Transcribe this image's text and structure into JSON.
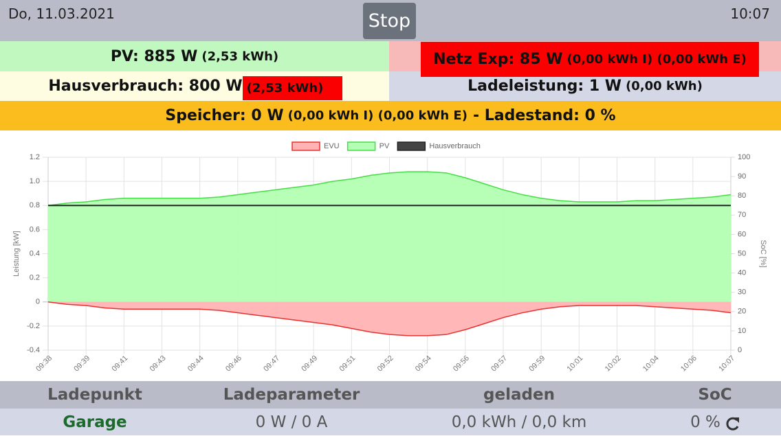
{
  "header": {
    "date": "Do, 11.03.2021",
    "button": "Stop",
    "time": "10:07"
  },
  "summary": {
    "pv": {
      "label": "PV: 885 W",
      "detail": "(2,53 kWh)"
    },
    "grid": {
      "label": "Netz Exp: 85 W",
      "detail": "(0,00 kWh I) (0,00 kWh E)"
    },
    "house": {
      "label": "Hausverbrauch: 800 W",
      "detail": "(2,53 kWh)"
    },
    "charging": {
      "label": "Ladeleistung: 1 W",
      "detail": "(0,00 kWh)"
    },
    "storage": {
      "label": "Speicher: 0 W",
      "detail": "(0,00 kWh I) (0,00 kWh E)",
      "soc": "- Ladestand: 0 %"
    }
  },
  "chart_data": {
    "type": "area",
    "y_label": "Leistung [kW]",
    "y2_label": "SoC [%]",
    "categories": [
      "09:38",
      null,
      "09:39",
      null,
      "09:41",
      null,
      "09:43",
      null,
      "09:44",
      null,
      "09:46",
      null,
      "09:47",
      null,
      "09:49",
      null,
      "09:51",
      null,
      "09:52",
      null,
      "09:54",
      null,
      "09:56",
      null,
      "09:57",
      null,
      "09:59",
      null,
      "10:01",
      null,
      "10:02",
      null,
      "10:04",
      null,
      "10:06",
      null,
      "10:07"
    ],
    "series": [
      {
        "name": "EVU",
        "color": "#e83030",
        "fill": "#ffb3b3",
        "values": [
          0,
          -0.02,
          -0.03,
          -0.05,
          -0.06,
          -0.06,
          -0.06,
          -0.06,
          -0.06,
          -0.07,
          -0.09,
          -0.11,
          -0.13,
          -0.15,
          -0.17,
          -0.19,
          -0.22,
          -0.25,
          -0.27,
          -0.28,
          -0.28,
          -0.27,
          -0.23,
          -0.18,
          -0.13,
          -0.09,
          -0.06,
          -0.04,
          -0.03,
          -0.03,
          -0.03,
          -0.03,
          -0.04,
          -0.05,
          -0.06,
          -0.07,
          -0.09
        ]
      },
      {
        "name": "PV",
        "color": "#44dd44",
        "fill": "#b3ffb3",
        "values": [
          0.8,
          0.82,
          0.83,
          0.85,
          0.86,
          0.86,
          0.86,
          0.86,
          0.86,
          0.87,
          0.89,
          0.91,
          0.93,
          0.95,
          0.97,
          1.0,
          1.02,
          1.05,
          1.07,
          1.08,
          1.08,
          1.07,
          1.03,
          0.98,
          0.93,
          0.89,
          0.86,
          0.84,
          0.83,
          0.83,
          0.83,
          0.84,
          0.84,
          0.85,
          0.86,
          0.87,
          0.89
        ]
      },
      {
        "name": "Hausverbrauch",
        "color": "#222222",
        "fill": "#444444",
        "values": [
          0.8,
          0.8,
          0.8,
          0.8,
          0.8,
          0.8,
          0.8,
          0.8,
          0.8,
          0.8,
          0.8,
          0.8,
          0.8,
          0.8,
          0.8,
          0.8,
          0.8,
          0.8,
          0.8,
          0.8,
          0.8,
          0.8,
          0.8,
          0.8,
          0.8,
          0.8,
          0.8,
          0.8,
          0.8,
          0.8,
          0.8,
          0.8,
          0.8,
          0.8,
          0.8,
          0.8,
          0.8
        ],
        "filled": false
      }
    ],
    "ylim": [
      -0.4,
      1.2
    ],
    "yticks": [
      -0.4,
      -0.2,
      0,
      0.2,
      0.4,
      0.6,
      0.8,
      {
        "value": 1,
        "label": "1.0"
      },
      1.2
    ],
    "y2lim": [
      0,
      100
    ],
    "y2ticks": [
      0,
      10,
      20,
      30,
      40,
      50,
      60,
      70,
      80,
      90,
      100
    ],
    "grid": true,
    "legend": "top"
  },
  "table": {
    "headers": [
      "Ladepunkt",
      "Ladeparameter",
      "geladen",
      "SoC"
    ],
    "rows": [
      [
        "Garage",
        "0 W / 0 A",
        "0,0 kWh / 0,0 km",
        "0 %"
      ]
    ]
  }
}
